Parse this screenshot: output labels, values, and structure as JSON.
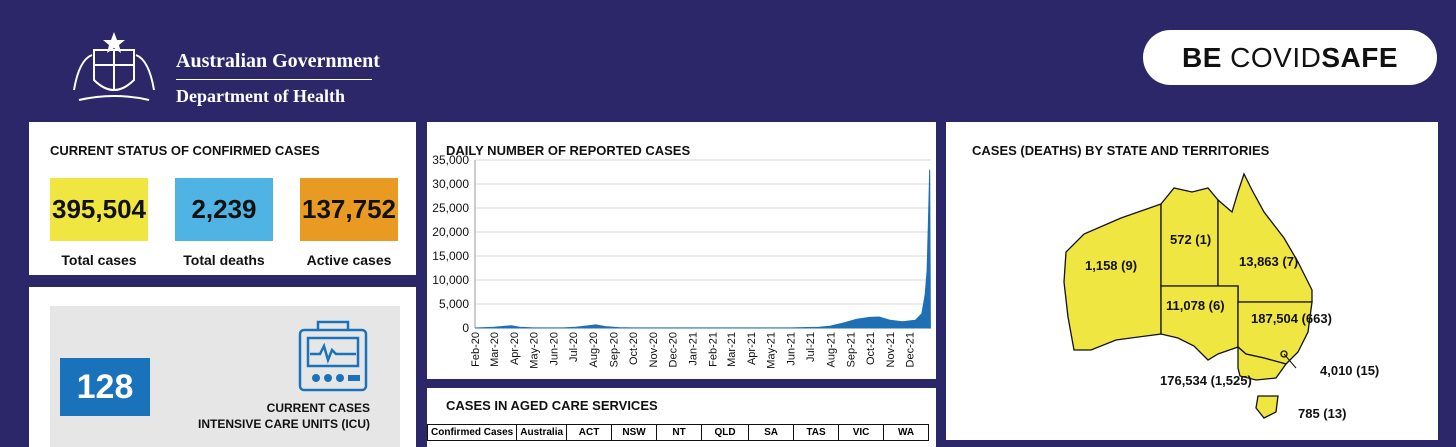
{
  "header": {
    "gov_title": "Australian Government",
    "gov_subtitle": "Department of Health",
    "badge_bold_1": "BE",
    "badge_light": "COVID",
    "badge_bold_2": "SAFE"
  },
  "status": {
    "title": "CURRENT STATUS OF CONFIRMED CASES",
    "stats": [
      {
        "value": "395,504",
        "label": "Total cases",
        "color": "#f0e642"
      },
      {
        "value": "2,239",
        "label": "Total deaths",
        "color": "#4fb3e3"
      },
      {
        "value": "137,752",
        "label": "Active cases",
        "color": "#e89a22"
      }
    ]
  },
  "icu": {
    "value": "128",
    "label_line1": "CURRENT CASES",
    "label_line2": "INTENSIVE CARE UNITS (ICU)",
    "icon": "heart-monitor-icon"
  },
  "chart_data": {
    "type": "area",
    "title": "DAILY NUMBER OF REPORTED CASES",
    "xlabel": "",
    "ylabel": "",
    "ylim": [
      0,
      35000
    ],
    "yticks": [
      "0",
      "5,000",
      "10,000",
      "15,000",
      "20,000",
      "25,000",
      "30,000",
      "35,000"
    ],
    "x": [
      "Feb-20",
      "Mar-20",
      "Apr-20",
      "May-20",
      "Jun-20",
      "Jul-20",
      "Aug-20",
      "Sep-20",
      "Oct-20",
      "Nov-20",
      "Dec-20",
      "Jan-21",
      "Feb-21",
      "Mar-21",
      "Apr-21",
      "May-21",
      "Jun-21",
      "Jul-21",
      "Aug-21",
      "Sep-21",
      "Oct-21",
      "Nov-21",
      "Dec-21"
    ],
    "color": "#1f6fb5",
    "grid": true,
    "series_points": [
      [
        "2020-02-01",
        0
      ],
      [
        "2020-03-01",
        150
      ],
      [
        "2020-03-20",
        400
      ],
      [
        "2020-03-28",
        450
      ],
      [
        "2020-04-10",
        150
      ],
      [
        "2020-05-01",
        20
      ],
      [
        "2020-06-15",
        20
      ],
      [
        "2020-07-05",
        150
      ],
      [
        "2020-07-20",
        400
      ],
      [
        "2020-08-05",
        650
      ],
      [
        "2020-08-20",
        300
      ],
      [
        "2020-09-10",
        80
      ],
      [
        "2020-10-01",
        20
      ],
      [
        "2021-06-01",
        20
      ],
      [
        "2021-07-15",
        150
      ],
      [
        "2021-08-01",
        400
      ],
      [
        "2021-08-20",
        1000
      ],
      [
        "2021-09-10",
        1800
      ],
      [
        "2021-09-30",
        2200
      ],
      [
        "2021-10-15",
        2300
      ],
      [
        "2021-11-01",
        1600
      ],
      [
        "2021-11-20",
        1300
      ],
      [
        "2021-12-10",
        1600
      ],
      [
        "2021-12-20",
        3000
      ],
      [
        "2021-12-25",
        7000
      ],
      [
        "2021-12-28",
        12000
      ],
      [
        "2021-12-30",
        22000
      ],
      [
        "2022-01-01",
        33000
      ],
      [
        "2022-01-02",
        0
      ]
    ]
  },
  "aged_care": {
    "title": "CASES IN AGED CARE SERVICES",
    "headers": [
      "Confirmed Cases",
      "Australia",
      "ACT",
      "NSW",
      "NT",
      "QLD",
      "SA",
      "TAS",
      "VIC",
      "WA"
    ]
  },
  "map": {
    "title": "CASES (DEATHS) BY STATE AND TERRITORIES",
    "fill": "#f0e642",
    "labels": {
      "wa": "1,158 (9)",
      "nt": "572 (1)",
      "qld": "13,863 (7)",
      "sa": "11,078 (6)",
      "nsw": "187,504 (663)",
      "act": "4,010 (15)",
      "vic": "176,534 (1,525)",
      "tas": "785 (13)"
    }
  }
}
